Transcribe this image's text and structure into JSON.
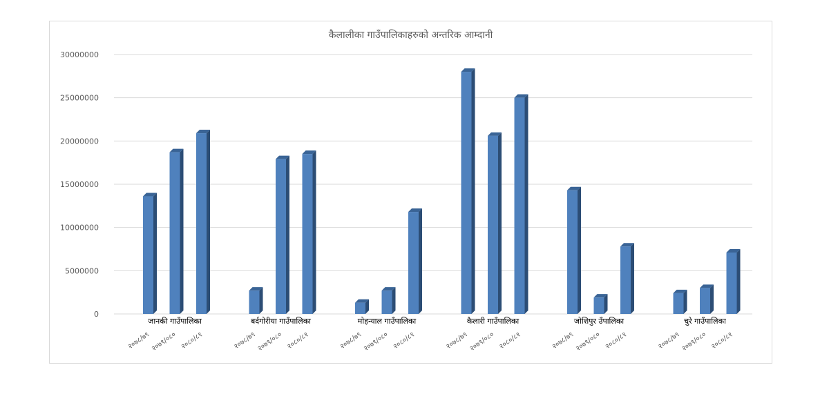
{
  "chart_data": {
    "type": "bar",
    "title": "कैलालीका गाउँपालिकाहरुको अन्तरिक आम्दानी",
    "ylim": [
      0,
      30000000
    ],
    "y_ticks": [
      "0",
      "5000000",
      "10000000",
      "15000000",
      "20000000",
      "25000000",
      "30000000"
    ],
    "grid": true,
    "groups": [
      {
        "name": "जानकी गाउँपालिका",
        "categories": [
          "२०७८/७९",
          "२०७९/०८०",
          "२०८०/८१"
        ],
        "values": [
          13600000,
          18700000,
          20900000
        ]
      },
      {
        "name": "बर्दगोरीया गाउँपालिका",
        "categories": [
          "२०७८/७९",
          "२०७९/०८०",
          "२०८०/८१"
        ],
        "values": [
          2700000,
          17900000,
          18500000
        ]
      },
      {
        "name": "मोहन्याल गाउँपालिका",
        "categories": [
          "२०७८/७९",
          "२०७९/०८०",
          "२०८०/८१"
        ],
        "values": [
          1300000,
          2700000,
          11800000
        ]
      },
      {
        "name": "कैलारी गाउँपालिका",
        "categories": [
          "२०७८/७९",
          "२०७९/०८०",
          "२०८०/८१"
        ],
        "values": [
          28000000,
          20600000,
          25000000
        ]
      },
      {
        "name": "जोशिपुर उँपालिका",
        "categories": [
          "२०७८/७९",
          "२०७९/०८०",
          "२०८०/८१"
        ],
        "values": [
          14300000,
          1900000,
          7800000
        ]
      },
      {
        "name": "चुरे गाउँपालिका",
        "categories": [
          "२०७८/७९",
          "२०७९/०८०",
          "२०८०/८१"
        ],
        "values": [
          2400000,
          3000000,
          7100000
        ]
      }
    ],
    "colors": {
      "bar_front": "#4f81bd",
      "bar_side": "#2c4d75",
      "bar_top": "#3a6496",
      "grid": "#d9d9d9",
      "text": "#595959"
    }
  }
}
